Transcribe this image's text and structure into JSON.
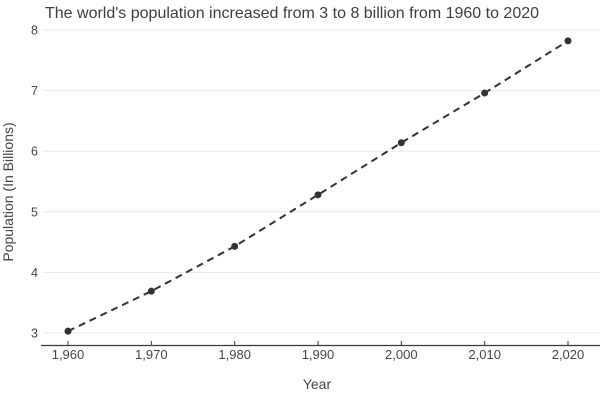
{
  "chart_data": {
    "type": "line",
    "title": "The world's population increased from 3 to 8 billion from 1960 to 2020",
    "xlabel": "Year",
    "ylabel": "Population (In Billions)",
    "x": [
      1960,
      1970,
      1980,
      1990,
      2000,
      2010,
      2020
    ],
    "x_tick_labels": [
      "1,960",
      "1,970",
      "1,980",
      "1,990",
      "2,000",
      "2,010",
      "2,020"
    ],
    "values": [
      3.03,
      3.69,
      4.43,
      5.28,
      6.14,
      6.96,
      7.82
    ],
    "y_ticks": [
      3,
      4,
      5,
      6,
      7,
      8
    ],
    "xlim": [
      1960,
      2020
    ],
    "ylim": [
      3,
      8
    ],
    "grid": true,
    "legend": false,
    "line_style": "dashed",
    "marker": "circle",
    "colors": {
      "line": "#333333",
      "marker": "#333333",
      "grid": "#e8e8e8",
      "axis": "#3a3a3a",
      "tick_text": "#464646",
      "title_text": "#3d3d3d",
      "background": "#ffffff"
    }
  }
}
